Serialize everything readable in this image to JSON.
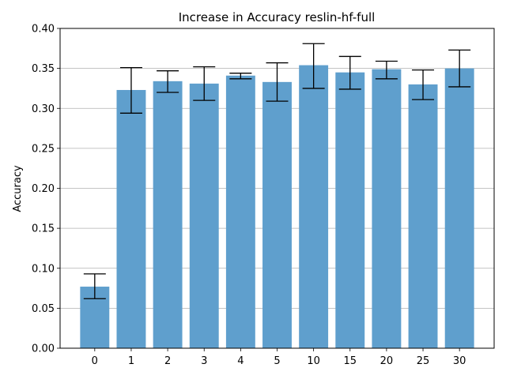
{
  "chart_data": {
    "type": "bar",
    "title": "Increase in Accuracy reslin-hf-full",
    "xlabel": "",
    "ylabel": "Accuracy",
    "categories": [
      "0",
      "1",
      "2",
      "3",
      "4",
      "5",
      "10",
      "15",
      "20",
      "25",
      "30"
    ],
    "values": [
      0.077,
      0.323,
      0.334,
      0.331,
      0.341,
      0.333,
      0.354,
      0.345,
      0.349,
      0.33,
      0.35
    ],
    "error_low": [
      0.062,
      0.294,
      0.32,
      0.31,
      0.337,
      0.309,
      0.325,
      0.324,
      0.337,
      0.311,
      0.327
    ],
    "error_high": [
      0.093,
      0.351,
      0.347,
      0.352,
      0.344,
      0.357,
      0.381,
      0.365,
      0.359,
      0.348,
      0.373
    ],
    "ylim": [
      0.0,
      0.4
    ],
    "yticks": [
      "0.00",
      "0.05",
      "0.10",
      "0.15",
      "0.20",
      "0.25",
      "0.30",
      "0.35",
      "0.40"
    ],
    "grid": "y",
    "bar_color": "#5f9fcd"
  }
}
